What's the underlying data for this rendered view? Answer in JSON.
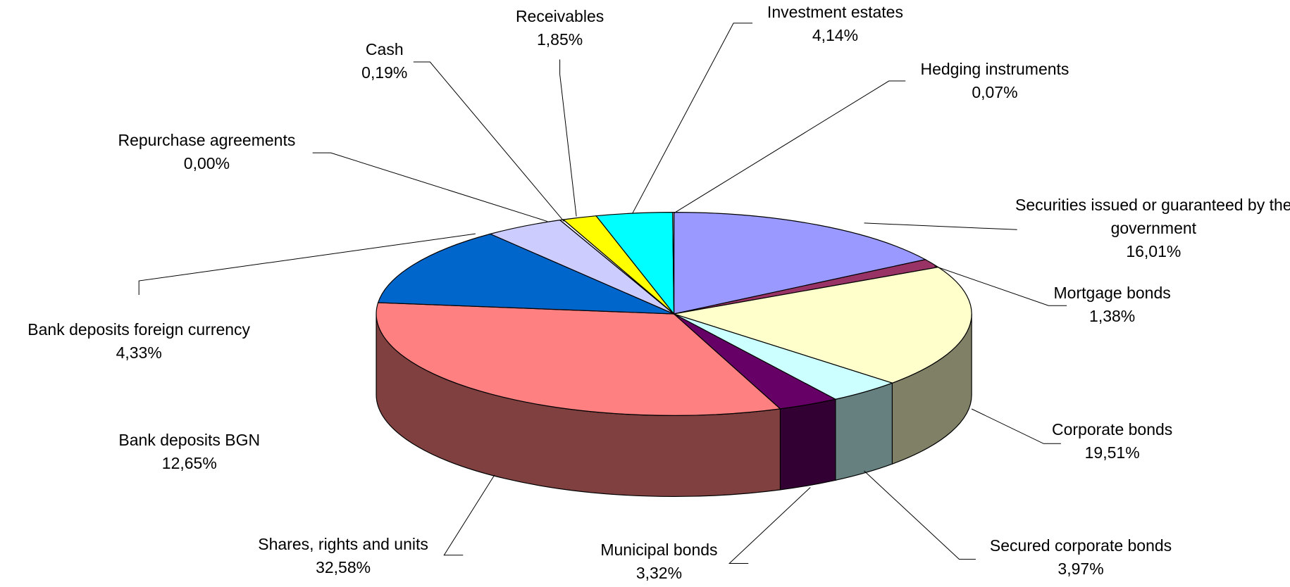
{
  "chart_data": {
    "type": "pie3d",
    "categories": [
      "Securities issued or guaranteed by the government",
      "Mortgage bonds",
      "Corporate bonds",
      "Secured corporate bonds",
      "Municipal bonds",
      "Shares, rights and units",
      "Bank deposits BGN",
      "Bank deposits foreign currency",
      "Repurchase agreements",
      "Cash",
      "Receivables",
      "Investment estates",
      "Hedging instruments"
    ],
    "values": [
      16.01,
      1.38,
      19.51,
      3.97,
      3.32,
      32.58,
      12.65,
      4.33,
      0.0,
      0.19,
      1.85,
      4.14,
      0.07
    ],
    "value_labels": [
      "16,01%",
      "1,38%",
      "19,51%",
      "3,97%",
      "3,32%",
      "32,58%",
      "12,65%",
      "4,33%",
      "0,00%",
      "0,19%",
      "1,85%",
      "4,14%",
      "0,07%"
    ],
    "colors": [
      "#9999ff",
      "#993366",
      "#ffffcc",
      "#ccffff",
      "#660066",
      "#ff8080",
      "#0066cc",
      "#ccccff",
      "#ffffff",
      "#ffffff",
      "#ffff00",
      "#00ffff",
      "#ffffff"
    ]
  }
}
